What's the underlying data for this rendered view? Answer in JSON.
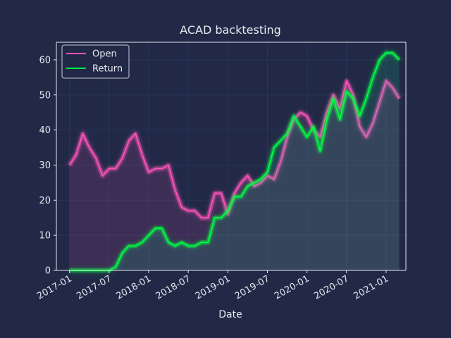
{
  "chart_data": {
    "type": "line",
    "title": "ACAD backtesting",
    "xlabel": "Date",
    "ylabel": "",
    "x_ticks": [
      "2017-01",
      "2017-07",
      "2018-01",
      "2018-07",
      "2019-01",
      "2019-07",
      "2020-01",
      "2020-07",
      "2021-01"
    ],
    "y_ticks": [
      0,
      10,
      20,
      30,
      40,
      50,
      60
    ],
    "xlim": [
      "2016-11",
      "2021-04"
    ],
    "ylim": [
      0,
      65
    ],
    "grid": true,
    "legend_position": "upper-left",
    "series": [
      {
        "name": "Open",
        "color": "#fe53bb",
        "fill": true,
        "points": [
          [
            "2017-01",
            30
          ],
          [
            "2017-02",
            33
          ],
          [
            "2017-03",
            39
          ],
          [
            "2017-04",
            35
          ],
          [
            "2017-05",
            32
          ],
          [
            "2017-06",
            27
          ],
          [
            "2017-07",
            29
          ],
          [
            "2017-08",
            29
          ],
          [
            "2017-09",
            32
          ],
          [
            "2017-10",
            37
          ],
          [
            "2017-11",
            39
          ],
          [
            "2017-12",
            33
          ],
          [
            "2018-01",
            28
          ],
          [
            "2018-02",
            29
          ],
          [
            "2018-03",
            29
          ],
          [
            "2018-04",
            30
          ],
          [
            "2018-05",
            23
          ],
          [
            "2018-06",
            18
          ],
          [
            "2018-07",
            17
          ],
          [
            "2018-08",
            17
          ],
          [
            "2018-09",
            15
          ],
          [
            "2018-10",
            15
          ],
          [
            "2018-11",
            22
          ],
          [
            "2018-12",
            22
          ],
          [
            "2019-01",
            16
          ],
          [
            "2019-02",
            22
          ],
          [
            "2019-03",
            25
          ],
          [
            "2019-04",
            27
          ],
          [
            "2019-05",
            24
          ],
          [
            "2019-06",
            25
          ],
          [
            "2019-07",
            27
          ],
          [
            "2019-08",
            26
          ],
          [
            "2019-09",
            31
          ],
          [
            "2019-10",
            38
          ],
          [
            "2019-11",
            43
          ],
          [
            "2019-12",
            45
          ],
          [
            "2020-01",
            44
          ],
          [
            "2020-02",
            40
          ],
          [
            "2020-03",
            38
          ],
          [
            "2020-04",
            45
          ],
          [
            "2020-05",
            50
          ],
          [
            "2020-06",
            46
          ],
          [
            "2020-07",
            54
          ],
          [
            "2020-08",
            50
          ],
          [
            "2020-09",
            41
          ],
          [
            "2020-10",
            38
          ],
          [
            "2020-11",
            42
          ],
          [
            "2020-12",
            48
          ],
          [
            "2021-01",
            54
          ],
          [
            "2021-02",
            52
          ],
          [
            "2021-03",
            49
          ]
        ]
      },
      {
        "name": "Return",
        "color": "#08f7a0",
        "line_color": "#00ff41",
        "fill": true,
        "points": [
          [
            "2017-01",
            0
          ],
          [
            "2017-02",
            0
          ],
          [
            "2017-03",
            0
          ],
          [
            "2017-04",
            0
          ],
          [
            "2017-05",
            0
          ],
          [
            "2017-06",
            0
          ],
          [
            "2017-07",
            0
          ],
          [
            "2017-08",
            1
          ],
          [
            "2017-09",
            5
          ],
          [
            "2017-10",
            7
          ],
          [
            "2017-11",
            7
          ],
          [
            "2017-12",
            8
          ],
          [
            "2018-01",
            10
          ],
          [
            "2018-02",
            12
          ],
          [
            "2018-03",
            12
          ],
          [
            "2018-04",
            8
          ],
          [
            "2018-05",
            7
          ],
          [
            "2018-06",
            8
          ],
          [
            "2018-07",
            7
          ],
          [
            "2018-08",
            7
          ],
          [
            "2018-09",
            8
          ],
          [
            "2018-10",
            8
          ],
          [
            "2018-11",
            15
          ],
          [
            "2018-12",
            15
          ],
          [
            "2019-01",
            17
          ],
          [
            "2019-02",
            21
          ],
          [
            "2019-03",
            21
          ],
          [
            "2019-04",
            24
          ],
          [
            "2019-05",
            25
          ],
          [
            "2019-06",
            26
          ],
          [
            "2019-07",
            28
          ],
          [
            "2019-08",
            35
          ],
          [
            "2019-09",
            37
          ],
          [
            "2019-10",
            39
          ],
          [
            "2019-11",
            44
          ],
          [
            "2019-12",
            41
          ],
          [
            "2020-01",
            38
          ],
          [
            "2020-02",
            41
          ],
          [
            "2020-03",
            34
          ],
          [
            "2020-04",
            43
          ],
          [
            "2020-05",
            49
          ],
          [
            "2020-06",
            43
          ],
          [
            "2020-07",
            51
          ],
          [
            "2020-08",
            49
          ],
          [
            "2020-09",
            44
          ],
          [
            "2020-10",
            49
          ],
          [
            "2020-11",
            55
          ],
          [
            "2020-12",
            60
          ],
          [
            "2021-01",
            62
          ],
          [
            "2021-02",
            62
          ],
          [
            "2021-03",
            60
          ]
        ]
      }
    ]
  }
}
